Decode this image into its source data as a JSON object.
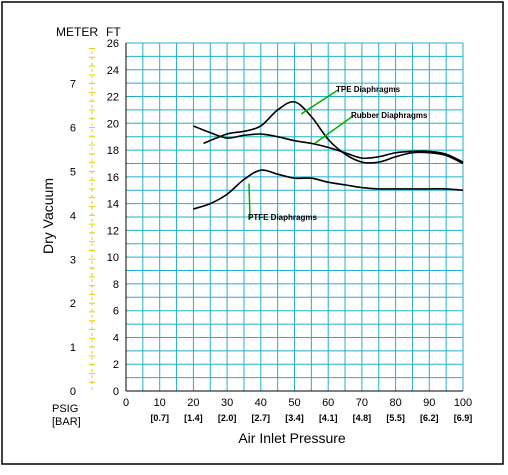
{
  "chart_data": {
    "type": "line",
    "title": "",
    "xlabel": "Air Inlet Pressure",
    "ylabel": "Dry Vacuum",
    "xlim": [
      0,
      100
    ],
    "ylim": [
      0,
      26
    ],
    "x_ticks": [
      "0",
      "10",
      "20",
      "30",
      "40",
      "50",
      "60",
      "70",
      "80",
      "90",
      "100"
    ],
    "x_ticks_secondary": [
      "[0.7]",
      "[1.4]",
      "[2.0]",
      "[2.7]",
      "[3.4]",
      "[4.1]",
      "[4.8]",
      "[5.5]",
      "[6.2]",
      "[6.9]"
    ],
    "x_unit_primary": "PSIG",
    "x_unit_secondary": "[BAR]",
    "y_ticks_ft": [
      "0",
      "2",
      "4",
      "6",
      "8",
      "10",
      "12",
      "14",
      "16",
      "18",
      "20",
      "22",
      "24",
      "26"
    ],
    "y_ticks_meter": [
      "0",
      "1",
      "2",
      "3",
      "4",
      "5",
      "6",
      "7"
    ],
    "y_unit_ft": "FT",
    "y_unit_meter": "METER",
    "grid": true,
    "grid_color": "#22b0c8",
    "series": [
      {
        "name": "TPE Diaphragms",
        "x": [
          23,
          30,
          35,
          40,
          45,
          50,
          55,
          60,
          65,
          70,
          75,
          80,
          85,
          90,
          95,
          100
        ],
        "values": [
          18.5,
          19.2,
          19.4,
          19.8,
          21.0,
          21.6,
          20.5,
          18.8,
          17.7,
          17.1,
          17.1,
          17.5,
          17.8,
          17.8,
          17.6,
          17.0
        ]
      },
      {
        "name": "Rubber Diaphragms",
        "x": [
          20,
          25,
          30,
          35,
          40,
          45,
          50,
          55,
          60,
          65,
          70,
          75,
          80,
          85,
          90,
          95,
          100
        ],
        "values": [
          19.8,
          19.3,
          18.9,
          19.1,
          19.2,
          19.0,
          18.7,
          18.5,
          18.2,
          17.8,
          17.4,
          17.5,
          17.8,
          17.9,
          17.9,
          17.7,
          17.1
        ]
      },
      {
        "name": "PTFE Diaphragms",
        "x": [
          20,
          25,
          30,
          35,
          40,
          45,
          50,
          55,
          60,
          65,
          70,
          75,
          80,
          85,
          90,
          95,
          100
        ],
        "values": [
          13.6,
          14.0,
          14.7,
          15.8,
          16.5,
          16.2,
          15.9,
          15.9,
          15.6,
          15.4,
          15.2,
          15.1,
          15.1,
          15.1,
          15.1,
          15.1,
          15.0
        ]
      }
    ]
  }
}
